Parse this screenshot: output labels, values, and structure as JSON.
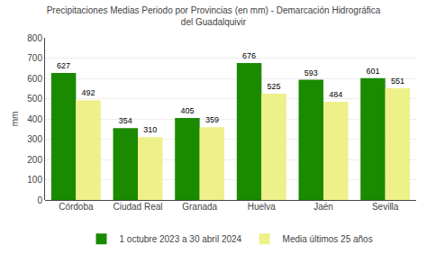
{
  "chart_data": {
    "type": "bar",
    "title": "Precipitaciones Medias Periodo por Provincias (en mm) - Demarcación Hidrográfica\ndel Guadalquivir",
    "categories": [
      "Córdoba",
      "Ciudad Real",
      "Granada",
      "Huelva",
      "Jaén",
      "Sevilla"
    ],
    "series": [
      {
        "name": "1 octubre 2023 a 30 abril 2024",
        "color": "#1a8a00",
        "values": [
          627,
          354,
          405,
          676,
          593,
          601
        ]
      },
      {
        "name": "Media últimos 25 años",
        "color": "#eef08a",
        "values": [
          492,
          310,
          359,
          525,
          484,
          551
        ]
      }
    ],
    "ylabel": "mm",
    "ylim": [
      0,
      800
    ],
    "yticks": [
      0,
      100,
      200,
      300,
      400,
      500,
      600,
      700,
      800
    ],
    "grid": true,
    "data_labels": true,
    "legend": "bottom"
  }
}
